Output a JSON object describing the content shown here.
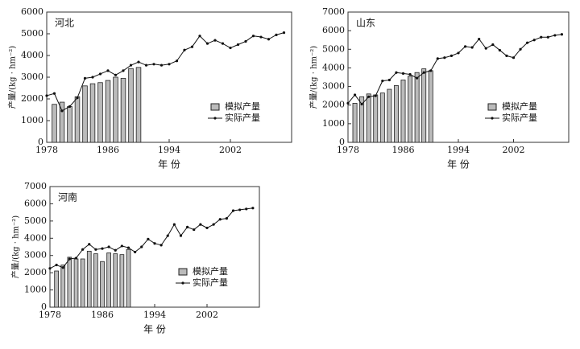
{
  "chart_data": [
    {
      "type": "bar-line",
      "title": "河北",
      "x_label": "年  份",
      "y_label": "产量/(kg · hm⁻²)",
      "xlim": [
        1978,
        2010
      ],
      "xticks": [
        1978,
        1986,
        1994,
        2002
      ],
      "ylim": [
        0,
        6000
      ],
      "yticks": [
        0,
        1000,
        2000,
        3000,
        4000,
        5000,
        6000
      ],
      "legend": "lower right",
      "series": [
        {
          "name": "模拟产量",
          "kind": "bar",
          "color": "#bbbbbb",
          "x": [
            1979,
            1980,
            1981,
            1982,
            1983,
            1984,
            1985,
            1986,
            1987,
            1988,
            1989,
            1990
          ],
          "values": [
            1750,
            1850,
            1650,
            2100,
            2600,
            2700,
            2750,
            2850,
            3000,
            2950,
            3400,
            3450
          ]
        },
        {
          "name": "实际产量",
          "kind": "line",
          "color": "#111111",
          "x": [
            1978,
            1979,
            1980,
            1981,
            1982,
            1983,
            1984,
            1985,
            1986,
            1987,
            1988,
            1989,
            1990,
            1991,
            1992,
            1993,
            1994,
            1995,
            1996,
            1997,
            1998,
            1999,
            2000,
            2001,
            2002,
            2003,
            2004,
            2005,
            2006,
            2007,
            2008,
            2009
          ],
          "values": [
            2150,
            2250,
            1450,
            1650,
            2050,
            2950,
            3000,
            3150,
            3300,
            3100,
            3300,
            3550,
            3700,
            3550,
            3600,
            3550,
            3600,
            3750,
            4250,
            4400,
            4900,
            4550,
            4700,
            4550,
            4350,
            4500,
            4650,
            4900,
            4850,
            4750,
            4950,
            5050
          ]
        }
      ]
    },
    {
      "type": "bar-line",
      "title": "山东",
      "x_label": "年  份",
      "y_label": "产量/(kg · hm⁻²)",
      "xlim": [
        1978,
        2010
      ],
      "xticks": [
        1978,
        1986,
        1994,
        2002
      ],
      "ylim": [
        0,
        7000
      ],
      "yticks": [
        0,
        1000,
        2000,
        3000,
        4000,
        5000,
        6000,
        7000
      ],
      "legend": "lower right",
      "series": [
        {
          "name": "模拟产量",
          "kind": "bar",
          "color": "#bbbbbb",
          "x": [
            1979,
            1980,
            1981,
            1982,
            1983,
            1984,
            1985,
            1986,
            1987,
            1988,
            1989,
            1990
          ],
          "values": [
            2100,
            2450,
            2600,
            2550,
            2650,
            2850,
            3050,
            3350,
            3550,
            3750,
            3950,
            3850
          ]
        },
        {
          "name": "实际产量",
          "kind": "line",
          "color": "#111111",
          "x": [
            1978,
            1979,
            1980,
            1981,
            1982,
            1983,
            1984,
            1985,
            1986,
            1987,
            1988,
            1989,
            1990,
            1991,
            1992,
            1993,
            1994,
            1995,
            1996,
            1997,
            1998,
            1999,
            2000,
            2001,
            2002,
            2003,
            2004,
            2005,
            2006,
            2007,
            2008,
            2009
          ],
          "values": [
            2100,
            2550,
            2050,
            2450,
            2500,
            3300,
            3350,
            3750,
            3700,
            3650,
            3450,
            3750,
            3850,
            4500,
            4550,
            4650,
            4800,
            5150,
            5100,
            5550,
            5050,
            5250,
            4950,
            4650,
            4550,
            5000,
            5350,
            5500,
            5650,
            5650,
            5750,
            5800
          ]
        }
      ]
    },
    {
      "type": "bar-line",
      "title": "河南",
      "x_label": "年  份",
      "y_label": "产量/(kg · hm⁻²)",
      "xlim": [
        1978,
        2010
      ],
      "xticks": [
        1978,
        1986,
        1994,
        2002
      ],
      "ylim": [
        0,
        7000
      ],
      "yticks": [
        0,
        1000,
        2000,
        3000,
        4000,
        5000,
        6000,
        7000
      ],
      "legend": "lower right",
      "series": [
        {
          "name": "模拟产量",
          "kind": "bar",
          "color": "#bbbbbb",
          "x": [
            1979,
            1980,
            1981,
            1982,
            1983,
            1984,
            1985,
            1986,
            1987,
            1988,
            1989,
            1990
          ],
          "values": [
            2100,
            2450,
            2900,
            2800,
            2800,
            3250,
            3100,
            2650,
            3150,
            3100,
            3050,
            3350
          ]
        },
        {
          "name": "实际产量",
          "kind": "line",
          "color": "#111111",
          "x": [
            1978,
            1979,
            1980,
            1981,
            1982,
            1983,
            1984,
            1985,
            1986,
            1987,
            1988,
            1989,
            1990,
            1991,
            1992,
            1993,
            1994,
            1995,
            1996,
            1997,
            1998,
            1999,
            2000,
            2001,
            2002,
            2003,
            2004,
            2005,
            2006,
            2007,
            2008,
            2009
          ],
          "values": [
            2250,
            2450,
            2300,
            2800,
            2850,
            3350,
            3650,
            3350,
            3400,
            3500,
            3300,
            3550,
            3450,
            3200,
            3500,
            3950,
            3700,
            3600,
            4150,
            4800,
            4150,
            4650,
            4500,
            4800,
            4600,
            4800,
            5100,
            5150,
            5600,
            5650,
            5700,
            5750
          ]
        }
      ]
    }
  ]
}
